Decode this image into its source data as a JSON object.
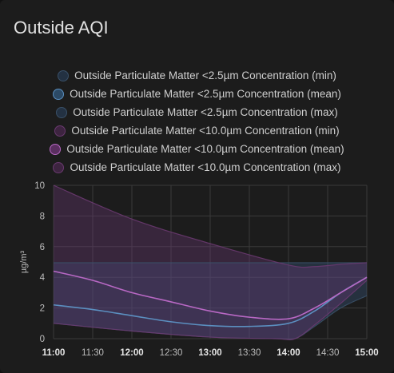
{
  "card": {
    "title": "Outside AQI"
  },
  "legend": [
    {
      "label": "Outside Particulate Matter <2.5µm Concentration (min)",
      "fill": "#233142",
      "border": "#3a5068"
    },
    {
      "label": "Outside Particulate Matter <2.5µm Concentration (mean)",
      "fill": "#2c4a66",
      "border": "#5b8fc0"
    },
    {
      "label": "Outside Particulate Matter <2.5µm Concentration (max)",
      "fill": "#233142",
      "border": "#3a5068"
    },
    {
      "label": "Outside Particulate Matter <10.0µm Concentration (min)",
      "fill": "#3d2440",
      "border": "#6a3a70"
    },
    {
      "label": "Outside Particulate Matter <10.0µm Concentration (mean)",
      "fill": "#5a2f60",
      "border": "#b868c4"
    },
    {
      "label": "Outside Particulate Matter <10.0µm Concentration (max)",
      "fill": "#3d2440",
      "border": "#6a3a70"
    }
  ],
  "chart_data": {
    "type": "area",
    "ylabel": "µg/m³",
    "ylim": [
      0,
      10
    ],
    "yticks": [
      "0",
      "2",
      "4",
      "6",
      "8",
      "10"
    ],
    "xlim": [
      0,
      240
    ],
    "xticks": [
      {
        "label": "11:00",
        "bold": true
      },
      {
        "label": "11:30",
        "bold": false
      },
      {
        "label": "12:00",
        "bold": true
      },
      {
        "label": "12:30",
        "bold": false
      },
      {
        "label": "13:00",
        "bold": true
      },
      {
        "label": "13:30",
        "bold": false
      },
      {
        "label": "14:00",
        "bold": true
      },
      {
        "label": "14:30",
        "bold": false
      },
      {
        "label": "15:00",
        "bold": true
      }
    ],
    "grid": true,
    "series": [
      {
        "name": "Outside Particulate Matter <2.5µm Concentration (min)",
        "color": "#3a5068",
        "points": [
          [
            0,
            1.0
          ],
          [
            60,
            0.5
          ],
          [
            120,
            0.1
          ],
          [
            170,
            0.0
          ],
          [
            185,
            0.0
          ],
          [
            200,
            0.8
          ],
          [
            220,
            2.0
          ],
          [
            240,
            2.8
          ]
        ]
      },
      {
        "name": "Outside Particulate Matter <2.5µm Concentration (mean)",
        "color": "#5b8fc0",
        "points": [
          [
            0,
            2.2
          ],
          [
            30,
            1.9
          ],
          [
            60,
            1.5
          ],
          [
            90,
            1.1
          ],
          [
            120,
            0.85
          ],
          [
            150,
            0.8
          ],
          [
            180,
            1.0
          ],
          [
            200,
            1.8
          ],
          [
            220,
            3.0
          ],
          [
            240,
            4.0
          ]
        ]
      },
      {
        "name": "Outside Particulate Matter <2.5µm Concentration (max)",
        "color": "#3a5068",
        "points": [
          [
            0,
            4.95
          ],
          [
            60,
            4.95
          ],
          [
            120,
            4.95
          ],
          [
            180,
            4.95
          ],
          [
            200,
            4.95
          ],
          [
            240,
            4.95
          ]
        ]
      },
      {
        "name": "Outside Particulate Matter <10.0µm Concentration (min)",
        "color": "#6a3a70",
        "points": [
          [
            0,
            1.0
          ],
          [
            60,
            0.5
          ],
          [
            120,
            0.1
          ],
          [
            170,
            0.0
          ],
          [
            185,
            0.0
          ],
          [
            200,
            0.9
          ],
          [
            220,
            2.3
          ],
          [
            240,
            3.8
          ]
        ]
      },
      {
        "name": "Outside Particulate Matter <10.0µm Concentration (mean)",
        "color": "#b868c4",
        "points": [
          [
            0,
            4.4
          ],
          [
            30,
            3.8
          ],
          [
            60,
            3.0
          ],
          [
            90,
            2.4
          ],
          [
            120,
            1.8
          ],
          [
            150,
            1.4
          ],
          [
            180,
            1.3
          ],
          [
            200,
            2.0
          ],
          [
            220,
            3.0
          ],
          [
            240,
            4.0
          ]
        ]
      },
      {
        "name": "Outside Particulate Matter <10.0µm Concentration (max)",
        "color": "#6a3a70",
        "points": [
          [
            0,
            10.0
          ],
          [
            60,
            7.8
          ],
          [
            120,
            6.2
          ],
          [
            180,
            4.8
          ],
          [
            200,
            4.7
          ],
          [
            220,
            4.85
          ],
          [
            240,
            4.95
          ]
        ]
      }
    ]
  }
}
